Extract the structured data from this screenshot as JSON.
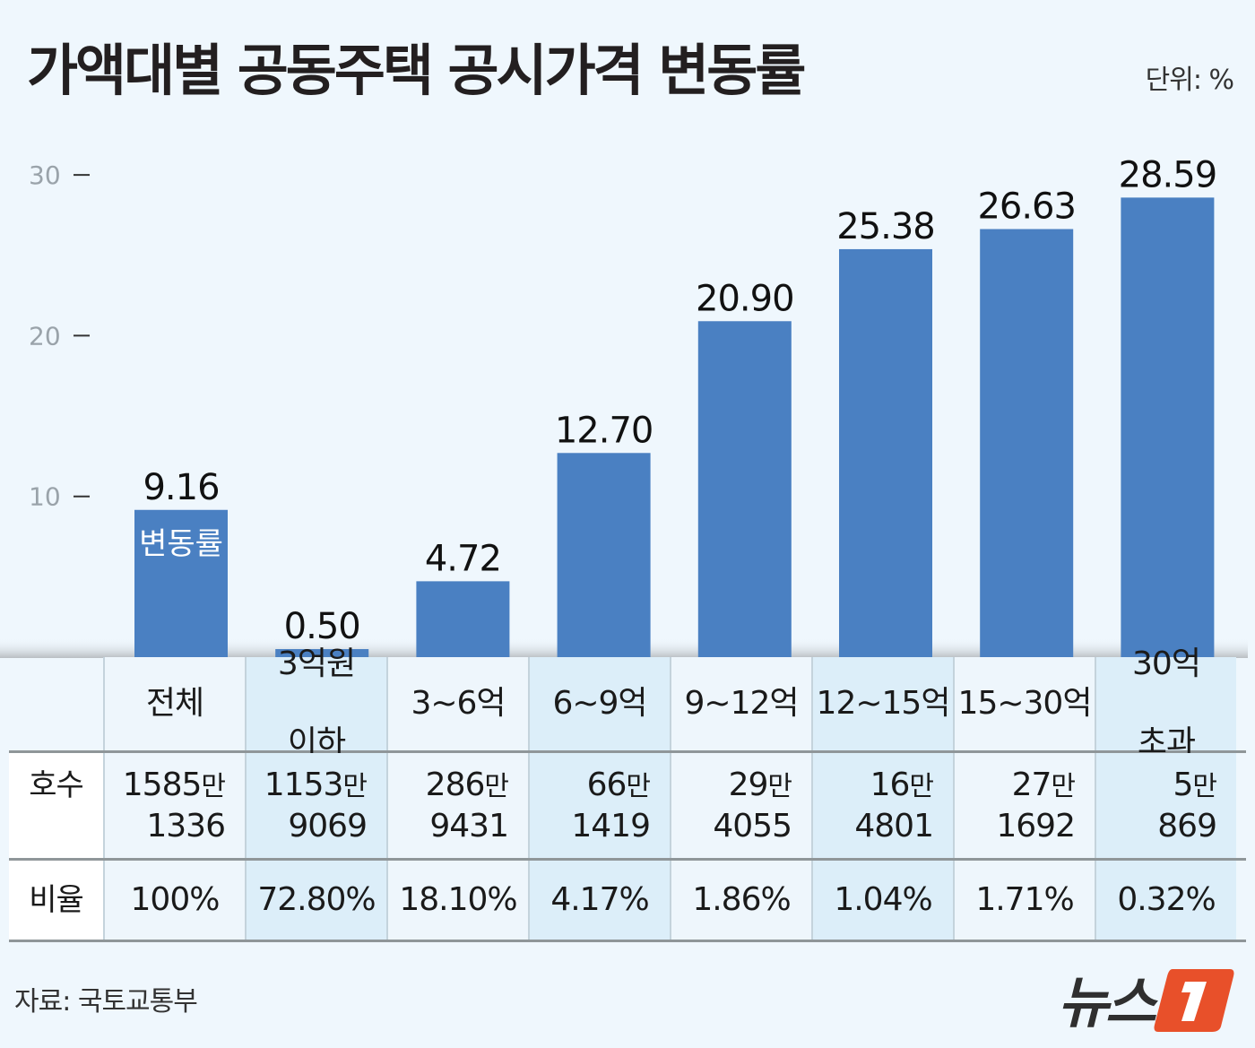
{
  "title": "가액대별 공동주택 공시가격 변동률",
  "unit": "단위: %",
  "colors": {
    "bar": "#4a80c2",
    "background": "#eff7fd",
    "logo_accent": "#e8502a"
  },
  "chart_data": {
    "type": "bar",
    "title": "가액대별 공동주택 공시가격 변동률",
    "unit": "단위: %",
    "categories": [
      "전체",
      "3억원 이하",
      "3~6억",
      "6~9억",
      "9~12억",
      "12~15억",
      "15~30억",
      "30억 초과"
    ],
    "values": [
      9.16,
      0.5,
      4.72,
      12.7,
      20.9,
      25.38,
      26.63,
      28.59
    ],
    "value_labels": [
      "9.16",
      "0.50",
      "4.72",
      "12.70",
      "20.90",
      "25.38",
      "26.63",
      "28.59"
    ],
    "series_label": "변동률",
    "yticks": [
      "10",
      "20",
      "30"
    ],
    "ylim": [
      0,
      30
    ],
    "grid": false,
    "legend": "none"
  },
  "table": {
    "columns": [
      [
        "전체"
      ],
      [
        "3억원",
        "이하"
      ],
      [
        "3~6억"
      ],
      [
        "6~9억"
      ],
      [
        "9~12억"
      ],
      [
        "12~15억"
      ],
      [
        "15~30억"
      ],
      [
        "30억",
        "초과"
      ]
    ],
    "rows": [
      {
        "label": "호수",
        "values": [
          [
            "1585",
            "1336"
          ],
          [
            "1153",
            "9069"
          ],
          [
            "286",
            "9431"
          ],
          [
            "66",
            "1419"
          ],
          [
            "29",
            "4055"
          ],
          [
            "16",
            "4801"
          ],
          [
            "27",
            "1692"
          ],
          [
            "5",
            "869"
          ]
        ],
        "unit": "만"
      },
      {
        "label": "비율",
        "values": [
          "100%",
          "72.80%",
          "18.10%",
          "4.17%",
          "1.86%",
          "1.04%",
          "1.71%",
          "0.32%"
        ]
      }
    ]
  },
  "source": "자료: 국토교통부",
  "logo": {
    "text": "뉴스",
    "mark": "1"
  }
}
